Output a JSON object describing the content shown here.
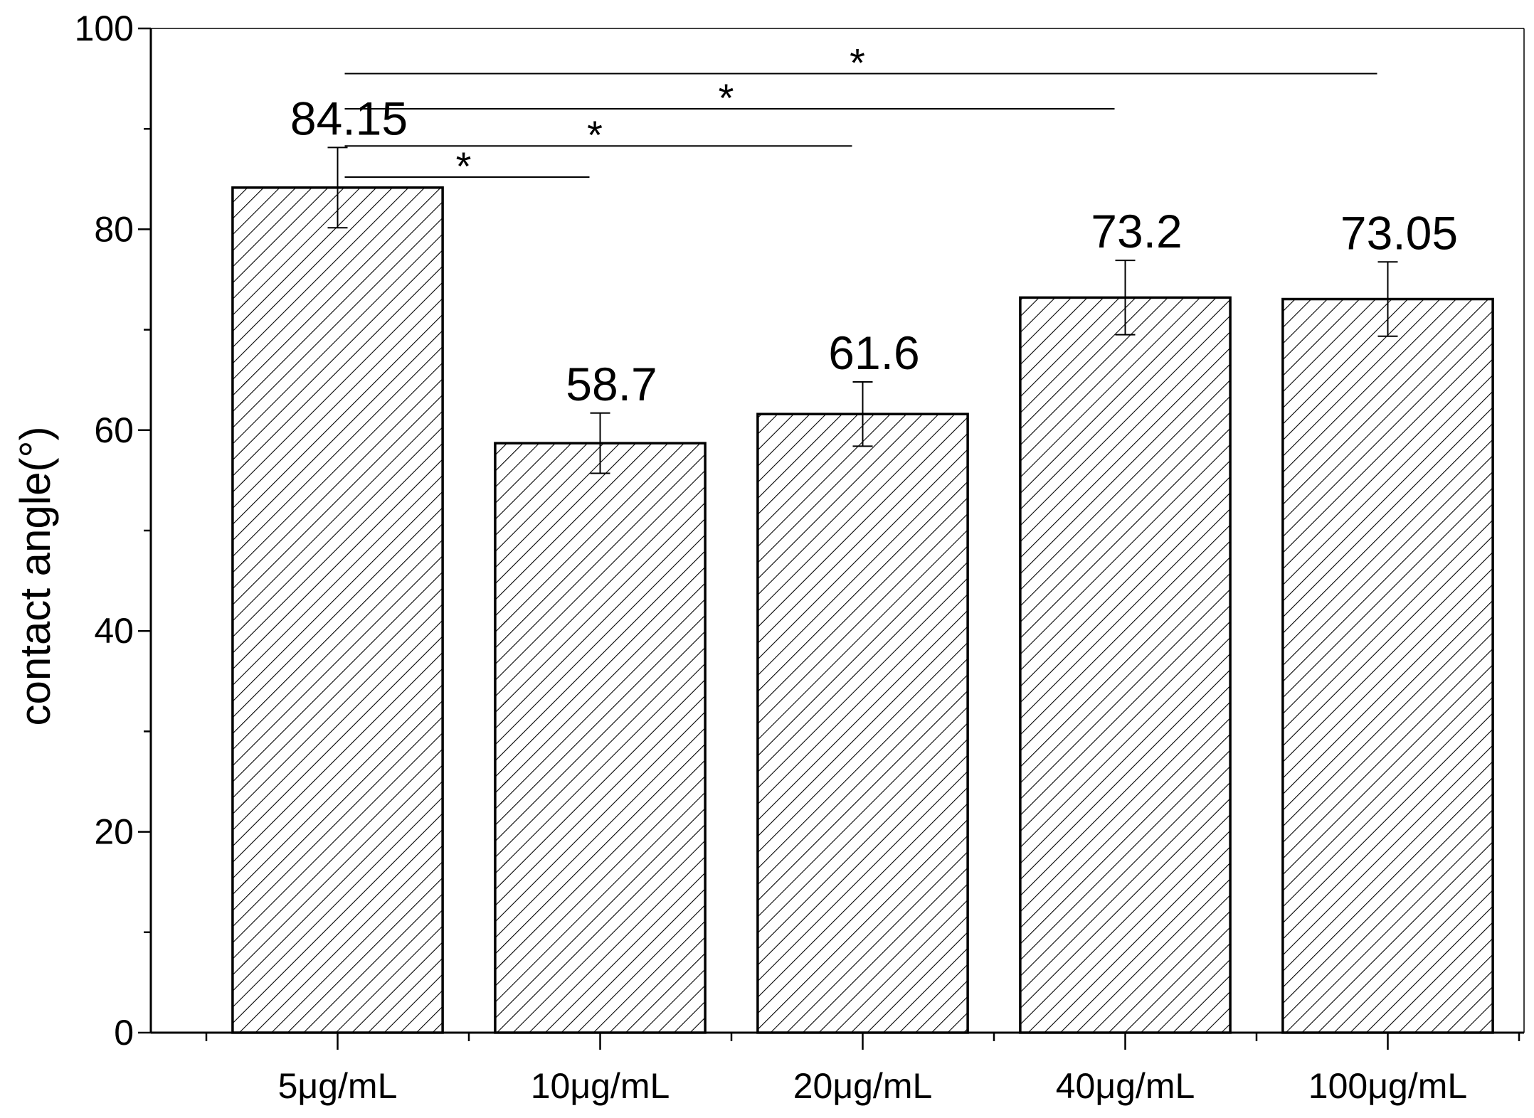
{
  "chart_data": {
    "type": "bar",
    "categories": [
      "5μg/mL",
      "10μg/mL",
      "20μg/mL",
      "40μg/mL",
      "100μg/mL"
    ],
    "values": [
      84.15,
      58.7,
      61.6,
      73.2,
      73.05
    ],
    "errors": [
      4.0,
      3.0,
      3.2,
      3.7,
      3.7
    ],
    "value_labels": [
      "84.15",
      "58.7",
      "61.6",
      "73.2",
      "73.05"
    ],
    "ylabel": "contact angle(°)",
    "ylim": [
      0,
      100
    ],
    "yticks": [
      0,
      20,
      40,
      60,
      80,
      100
    ],
    "yminor_step": 10,
    "bar_fill": "hatched",
    "bar_stroke": "#000000",
    "significance": [
      {
        "from": "5μg/mL",
        "to": "10μg/mL",
        "y": 85.2,
        "mark": "*"
      },
      {
        "from": "5μg/mL",
        "to": "20μg/mL",
        "y": 88.3,
        "mark": "*"
      },
      {
        "from": "5μg/mL",
        "to": "40μg/mL",
        "y": 92.0,
        "mark": "*"
      },
      {
        "from": "5μg/mL",
        "to": "100μg/mL",
        "y": 95.5,
        "mark": "*"
      }
    ]
  }
}
